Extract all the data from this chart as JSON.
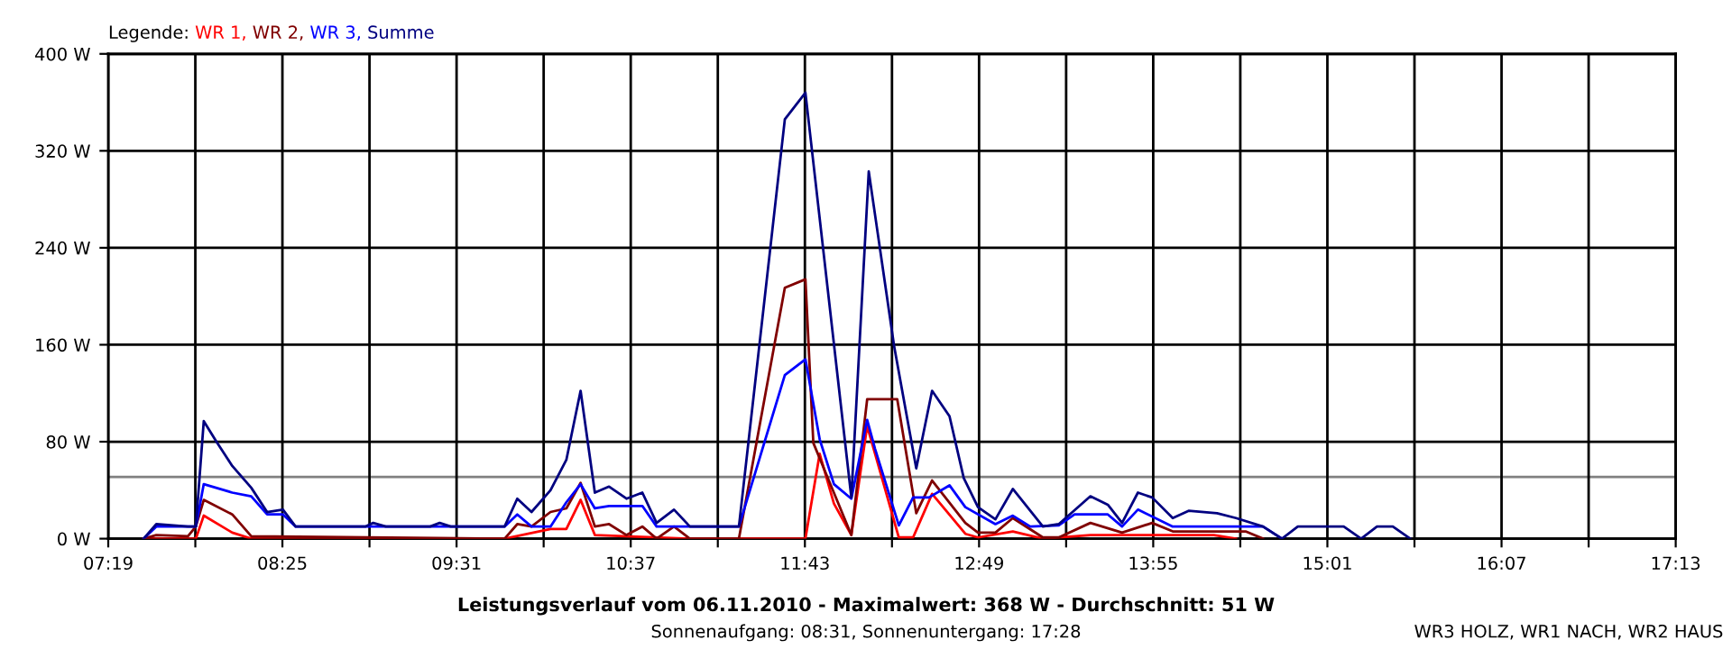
{
  "chart_data": {
    "type": "line",
    "title": "Leistungsverlauf vom 06.11.2010 - Maximalwert: 368 W - Durchschnitt: 51 W",
    "subtitle": "Sonnenaufgang: 08:31, Sonnenuntergang: 17:28",
    "legend_title": "Legende:",
    "annotations": [
      "WR3 HOLZ, WR1 NACH, WR2 HAUS"
    ],
    "xlim": [
      7.3167,
      17.2167
    ],
    "xticks": [
      {
        "value": 7.3167,
        "label": "07:19"
      },
      {
        "value": 7.8667,
        "label": null
      },
      {
        "value": 8.4167,
        "label": "08:25"
      },
      {
        "value": 8.9667,
        "label": null
      },
      {
        "value": 9.5167,
        "label": "09:31"
      },
      {
        "value": 10.0667,
        "label": null
      },
      {
        "value": 10.6167,
        "label": "10:37"
      },
      {
        "value": 11.1667,
        "label": null
      },
      {
        "value": 11.7167,
        "label": "11:43"
      },
      {
        "value": 12.2667,
        "label": null
      },
      {
        "value": 12.8167,
        "label": "12:49"
      },
      {
        "value": 13.3667,
        "label": null
      },
      {
        "value": 13.9167,
        "label": "13:55"
      },
      {
        "value": 14.4667,
        "label": null
      },
      {
        "value": 15.0167,
        "label": "15:01"
      },
      {
        "value": 15.5667,
        "label": null
      },
      {
        "value": 16.1167,
        "label": "16:07"
      },
      {
        "value": 16.6667,
        "label": null
      },
      {
        "value": 17.2167,
        "label": "17:13"
      }
    ],
    "ylim": [
      0,
      400
    ],
    "yticks": [
      {
        "value": 0,
        "label": "0 W"
      },
      {
        "value": 80,
        "label": "80 W"
      },
      {
        "value": 160,
        "label": "160 W"
      },
      {
        "value": 240,
        "label": "240 W"
      },
      {
        "value": 320,
        "label": "320 W"
      },
      {
        "value": 400,
        "label": "400 W"
      }
    ],
    "grid": true,
    "legend": "top left",
    "marker": "none",
    "line_style": "solid",
    "ref_lines": [
      {
        "axis": "y",
        "value": 51,
        "color": "#808080"
      }
    ],
    "series": [
      {
        "name": "WR 1,",
        "color": "#ff0000",
        "x": [
          7.54,
          7.87,
          7.92,
          8.1,
          8.22,
          9.82,
          10.11,
          10.21,
          10.3,
          10.39,
          10.99,
          11.72,
          11.81,
          11.9,
          12.01,
          12.11,
          12.31,
          12.4,
          12.52,
          12.73,
          12.81,
          13.03,
          13.22,
          13.52,
          14.3,
          14.44
        ],
        "values": [
          0,
          0,
          19,
          5,
          0,
          0,
          8,
          8,
          32,
          3,
          0,
          0,
          70,
          29,
          3,
          93,
          1,
          1,
          37,
          4,
          1,
          6,
          0,
          3,
          3,
          0
        ]
      },
      {
        "name": "WR 2,",
        "color": "#800000",
        "x": [
          7.54,
          7.62,
          7.82,
          7.87,
          7.92,
          8.1,
          8.22,
          9.82,
          9.9,
          9.99,
          10.11,
          10.21,
          10.3,
          10.39,
          10.48,
          10.59,
          10.69,
          10.78,
          10.89,
          10.99,
          11.3,
          11.59,
          11.72,
          11.77,
          12.01,
          12.11,
          12.3,
          12.42,
          12.52,
          12.73,
          12.81,
          12.92,
          13.03,
          13.22,
          13.32,
          13.52,
          13.72,
          13.91,
          14.04,
          14.5,
          14.61
        ],
        "values": [
          0,
          3,
          2,
          10,
          32,
          20,
          2,
          0,
          12,
          10,
          22,
          25,
          46,
          10,
          12,
          3,
          10,
          0,
          10,
          0,
          0,
          207,
          214,
          79,
          3,
          115,
          115,
          21,
          48,
          13,
          5,
          5,
          17,
          1,
          1,
          13,
          5,
          13,
          6,
          6,
          0
        ]
      },
      {
        "name": "WR 3,",
        "color": "#0000ff",
        "x": [
          7.54,
          7.62,
          7.82,
          7.87,
          7.92,
          8.1,
          8.22,
          8.32,
          8.42,
          8.5,
          9.82,
          9.9,
          9.99,
          10.11,
          10.21,
          10.3,
          10.39,
          10.48,
          10.69,
          10.78,
          10.99,
          11.3,
          11.59,
          11.72,
          11.81,
          11.9,
          12.01,
          12.11,
          12.16,
          12.31,
          12.4,
          12.5,
          12.63,
          12.73,
          12.92,
          13.03,
          13.14,
          13.32,
          13.42,
          13.63,
          13.72,
          13.82,
          14.04,
          14.61,
          14.73
        ],
        "values": [
          0,
          10,
          10,
          10,
          45,
          38,
          35,
          20,
          20,
          10,
          10,
          20,
          10,
          10,
          30,
          45,
          25,
          27,
          27,
          10,
          10,
          10,
          135,
          148,
          82,
          45,
          33,
          98,
          74,
          11,
          34,
          34,
          44,
          26,
          12,
          19,
          10,
          11,
          20,
          20,
          10,
          24,
          10,
          10,
          0
        ]
      },
      {
        "name": "Summe",
        "color": "#000080",
        "x": [
          7.54,
          7.62,
          7.82,
          7.87,
          7.92,
          8.0,
          8.1,
          8.22,
          8.32,
          8.42,
          8.5,
          8.94,
          8.99,
          9.07,
          9.35,
          9.41,
          9.48,
          9.82,
          9.9,
          9.99,
          10.11,
          10.21,
          10.3,
          10.39,
          10.48,
          10.59,
          10.69,
          10.78,
          10.89,
          10.99,
          11.3,
          11.59,
          11.72,
          12.01,
          12.12,
          12.28,
          12.42,
          12.52,
          12.63,
          12.72,
          12.81,
          12.92,
          13.03,
          13.22,
          13.32,
          13.52,
          13.63,
          13.72,
          13.82,
          13.91,
          14.04,
          14.14,
          14.32,
          14.44,
          14.61,
          14.73,
          14.83,
          15.12,
          15.23,
          15.33,
          15.43,
          15.54
        ],
        "values": [
          0,
          12,
          10,
          10,
          97,
          80,
          60,
          42,
          22,
          24,
          10,
          10,
          13,
          10,
          10,
          13,
          10,
          10,
          33,
          22,
          40,
          65,
          122,
          38,
          43,
          33,
          38,
          13,
          24,
          10,
          10,
          346,
          368,
          34,
          303,
          159,
          58,
          122,
          101,
          50,
          26,
          16,
          41,
          10,
          12,
          35,
          28,
          13,
          38,
          34,
          17,
          23,
          21,
          17,
          10,
          0,
          10,
          10,
          0,
          10,
          10,
          0
        ]
      }
    ]
  }
}
